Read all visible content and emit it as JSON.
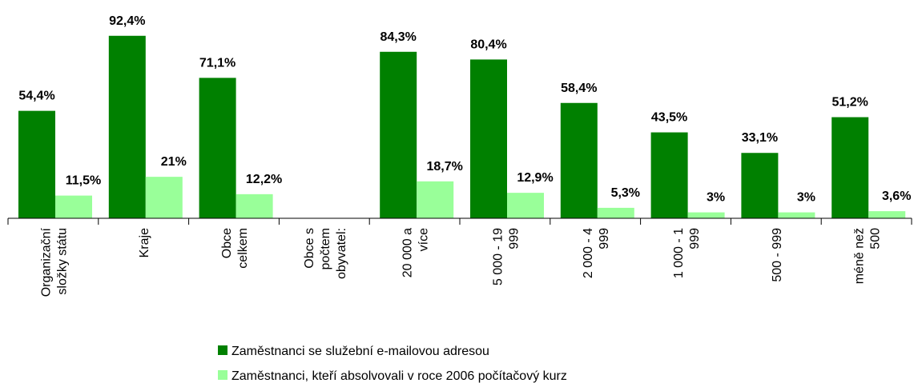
{
  "chart_data": {
    "type": "bar",
    "categories": [
      "Organizační\nsložky státu",
      "Kraje",
      "Obce\ncelkem",
      "Obce s\npočtem\nobyvatel:",
      "20 000 a\nvíce",
      "5 000 - 19\n999",
      "2 000 - 4\n999",
      "1 000 - 1\n999",
      "500 - 999",
      "méně než\n500"
    ],
    "series": [
      {
        "name": "Zaměstnanci se služební e-mailovou adresou",
        "color": "#008000",
        "values": [
          54.4,
          92.4,
          71.1,
          null,
          84.3,
          80.4,
          58.4,
          43.5,
          33.1,
          51.2
        ],
        "value_labels": [
          "54,4%",
          "92,4%",
          "71,1%",
          null,
          "84,3%",
          "80,4%",
          "58,4%",
          "43,5%",
          "33,1%",
          "51,2%"
        ]
      },
      {
        "name": "Zaměstnanci, kteří absolvovali v roce 2006 počítačový kurz",
        "color": "#99ff99",
        "values": [
          11.5,
          21,
          12.2,
          null,
          18.7,
          12.9,
          5.3,
          3,
          3,
          3.6
        ],
        "value_labels": [
          "11,5%",
          "21%",
          "12,2%",
          null,
          "18,7%",
          "12,9%",
          "5,3%",
          "3%",
          "3%",
          "3,6%"
        ]
      }
    ],
    "ylim": [
      0,
      100
    ]
  }
}
